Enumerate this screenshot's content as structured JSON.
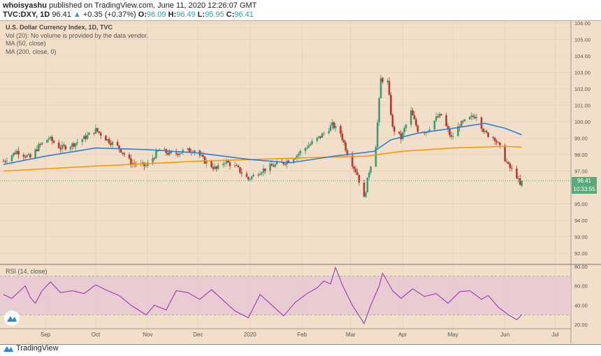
{
  "header": {
    "author": "whoisyashu",
    "published": "published on TradingView.com, June 11, 2020 12:26:07 GMT",
    "symbol": "TVC:DXY, 1D",
    "last": "96.41",
    "change": "+0.35 (+0.37%)",
    "o_label": "O:",
    "o": "96.09",
    "h_label": "H:",
    "h": "96.49",
    "l_label": "L:",
    "l": "95.95",
    "c_label": "C:",
    "c": "96.41"
  },
  "legend": {
    "title": "U.S. Dollar Currency Index, 1D, TVC",
    "vol": "Vol (20): No volume is provided by the data vendor.",
    "ma50": "MA (50, close)",
    "ma200": "MA (200, close, 0)"
  },
  "price_tag": "96.41",
  "countdown": "10:33:55",
  "rsi_label": "RSI (14, close)",
  "footer": "TradingView",
  "colors": {
    "up": "#3d9c73",
    "down": "#b53a2e",
    "ma50": "#2f7fd6",
    "ma200": "#ff9800",
    "rsi": "#9c27b0",
    "band": "#e5c7d3"
  },
  "chart_data": {
    "type": "candlestick",
    "price_ticks": [
      "106.00",
      "105.00",
      "104.00",
      "103.00",
      "102.00",
      "101.00",
      "100.00",
      "99.00",
      "98.00",
      "97.00",
      "95.00",
      "94.00",
      "93.00",
      "92.00"
    ],
    "rsi_ticks": [
      "80.00",
      "60.00",
      "40.00",
      "20.00"
    ],
    "months": [
      "Sep",
      "Oct",
      "Nov",
      "Dec",
      "2020",
      "Feb",
      "Mar",
      "Apr",
      "May",
      "Jun",
      "Jul"
    ],
    "closes": [
      [
        "2019-08-07",
        97.6
      ],
      [
        "2019-08-15",
        98.2
      ],
      [
        "2019-08-23",
        97.8
      ],
      [
        "2019-08-28",
        98.5
      ],
      [
        "2019-09-03",
        99.0
      ],
      [
        "2019-09-10",
        98.4
      ],
      [
        "2019-09-17",
        98.6
      ],
      [
        "2019-09-24",
        99.0
      ],
      [
        "2019-10-01",
        99.5
      ],
      [
        "2019-10-08",
        98.9
      ],
      [
        "2019-10-15",
        98.4
      ],
      [
        "2019-10-22",
        97.5
      ],
      [
        "2019-10-31",
        97.3
      ],
      [
        "2019-11-08",
        98.3
      ],
      [
        "2019-11-15",
        98.0
      ],
      [
        "2019-11-22",
        98.2
      ],
      [
        "2019-11-29",
        98.3
      ],
      [
        "2019-12-05",
        97.6
      ],
      [
        "2019-12-12",
        97.1
      ],
      [
        "2019-12-17",
        97.6
      ],
      [
        "2019-12-24",
        97.2
      ],
      [
        "2019-12-31",
        96.5
      ],
      [
        "2020-01-07",
        97.0
      ],
      [
        "2020-01-14",
        97.3
      ],
      [
        "2020-01-21",
        97.5
      ],
      [
        "2020-01-28",
        97.9
      ],
      [
        "2020-02-04",
        98.5
      ],
      [
        "2020-02-12",
        99.1
      ],
      [
        "2020-02-19",
        99.8
      ],
      [
        "2020-02-24",
        99.3
      ],
      [
        "2020-02-28",
        98.1
      ],
      [
        "2020-03-05",
        96.8
      ],
      [
        "2020-03-09",
        95.3
      ],
      [
        "2020-03-12",
        97.0
      ],
      [
        "2020-03-16",
        98.6
      ],
      [
        "2020-03-19",
        102.6
      ],
      [
        "2020-03-23",
        102.4
      ],
      [
        "2020-03-26",
        99.6
      ],
      [
        "2020-03-31",
        99.0
      ],
      [
        "2020-04-06",
        100.6
      ],
      [
        "2020-04-10",
        99.5
      ],
      [
        "2020-04-15",
        99.4
      ],
      [
        "2020-04-21",
        100.2
      ],
      [
        "2020-04-24",
        100.4
      ],
      [
        "2020-04-30",
        99.0
      ],
      [
        "2020-05-05",
        99.8
      ],
      [
        "2020-05-11",
        100.2
      ],
      [
        "2020-05-15",
        100.4
      ],
      [
        "2020-05-20",
        99.3
      ],
      [
        "2020-05-26",
        99.0
      ],
      [
        "2020-05-29",
        98.4
      ],
      [
        "2020-06-03",
        97.3
      ],
      [
        "2020-06-08",
        96.7
      ],
      [
        "2020-06-10",
        96.1
      ],
      [
        "2020-06-11",
        96.41
      ]
    ],
    "ma50": [
      [
        "2019-08-07",
        97.4
      ],
      [
        "2019-09-01",
        97.9
      ],
      [
        "2019-10-01",
        98.4
      ],
      [
        "2019-11-01",
        98.3
      ],
      [
        "2019-12-01",
        98.1
      ],
      [
        "2020-01-01",
        97.7
      ],
      [
        "2020-01-25",
        97.5
      ],
      [
        "2020-02-20",
        97.9
      ],
      [
        "2020-03-15",
        98.2
      ],
      [
        "2020-03-25",
        98.9
      ],
      [
        "2020-04-10",
        99.3
      ],
      [
        "2020-05-01",
        99.6
      ],
      [
        "2020-05-20",
        99.9
      ],
      [
        "2020-06-01",
        99.6
      ],
      [
        "2020-06-11",
        99.2
      ]
    ],
    "ma200": [
      [
        "2019-08-07",
        97.0
      ],
      [
        "2019-10-01",
        97.3
      ],
      [
        "2019-12-01",
        97.6
      ],
      [
        "2020-02-01",
        97.8
      ],
      [
        "2020-03-10",
        97.9
      ],
      [
        "2020-04-01",
        98.2
      ],
      [
        "2020-05-01",
        98.4
      ],
      [
        "2020-06-01",
        98.5
      ],
      [
        "2020-06-11",
        98.45
      ]
    ],
    "rsi": [
      [
        "2019-08-07",
        51
      ],
      [
        "2019-08-12",
        47
      ],
      [
        "2019-08-20",
        60
      ],
      [
        "2019-08-23",
        48
      ],
      [
        "2019-08-26",
        42
      ],
      [
        "2019-08-30",
        55
      ],
      [
        "2019-09-04",
        64
      ],
      [
        "2019-09-10",
        53
      ],
      [
        "2019-09-17",
        55
      ],
      [
        "2019-09-24",
        52
      ],
      [
        "2019-10-01",
        61
      ],
      [
        "2019-10-08",
        55
      ],
      [
        "2019-10-15",
        50
      ],
      [
        "2019-10-22",
        40
      ],
      [
        "2019-10-31",
        30
      ],
      [
        "2019-11-05",
        40
      ],
      [
        "2019-11-12",
        35
      ],
      [
        "2019-11-18",
        55
      ],
      [
        "2019-11-25",
        53
      ],
      [
        "2019-12-02",
        46
      ],
      [
        "2019-12-09",
        56
      ],
      [
        "2019-12-16",
        45
      ],
      [
        "2019-12-23",
        34
      ],
      [
        "2019-12-31",
        27
      ],
      [
        "2020-01-07",
        51
      ],
      [
        "2020-01-14",
        40
      ],
      [
        "2020-01-21",
        29
      ],
      [
        "2020-01-28",
        43
      ],
      [
        "2020-02-04",
        52
      ],
      [
        "2020-02-10",
        58
      ],
      [
        "2020-02-14",
        65
      ],
      [
        "2020-02-18",
        62
      ],
      [
        "2020-02-21",
        79
      ],
      [
        "2020-02-25",
        61
      ],
      [
        "2020-03-02",
        40
      ],
      [
        "2020-03-09",
        21
      ],
      [
        "2020-03-13",
        40
      ],
      [
        "2020-03-18",
        60
      ],
      [
        "2020-03-20",
        73
      ],
      [
        "2020-03-26",
        55
      ],
      [
        "2020-03-31",
        47
      ],
      [
        "2020-04-07",
        57
      ],
      [
        "2020-04-14",
        49
      ],
      [
        "2020-04-21",
        52
      ],
      [
        "2020-04-28",
        42
      ],
      [
        "2020-05-05",
        54
      ],
      [
        "2020-05-11",
        55
      ],
      [
        "2020-05-18",
        46
      ],
      [
        "2020-05-22",
        50
      ],
      [
        "2020-05-28",
        38
      ],
      [
        "2020-06-03",
        30
      ],
      [
        "2020-06-08",
        25
      ],
      [
        "2020-06-11",
        30
      ]
    ]
  }
}
